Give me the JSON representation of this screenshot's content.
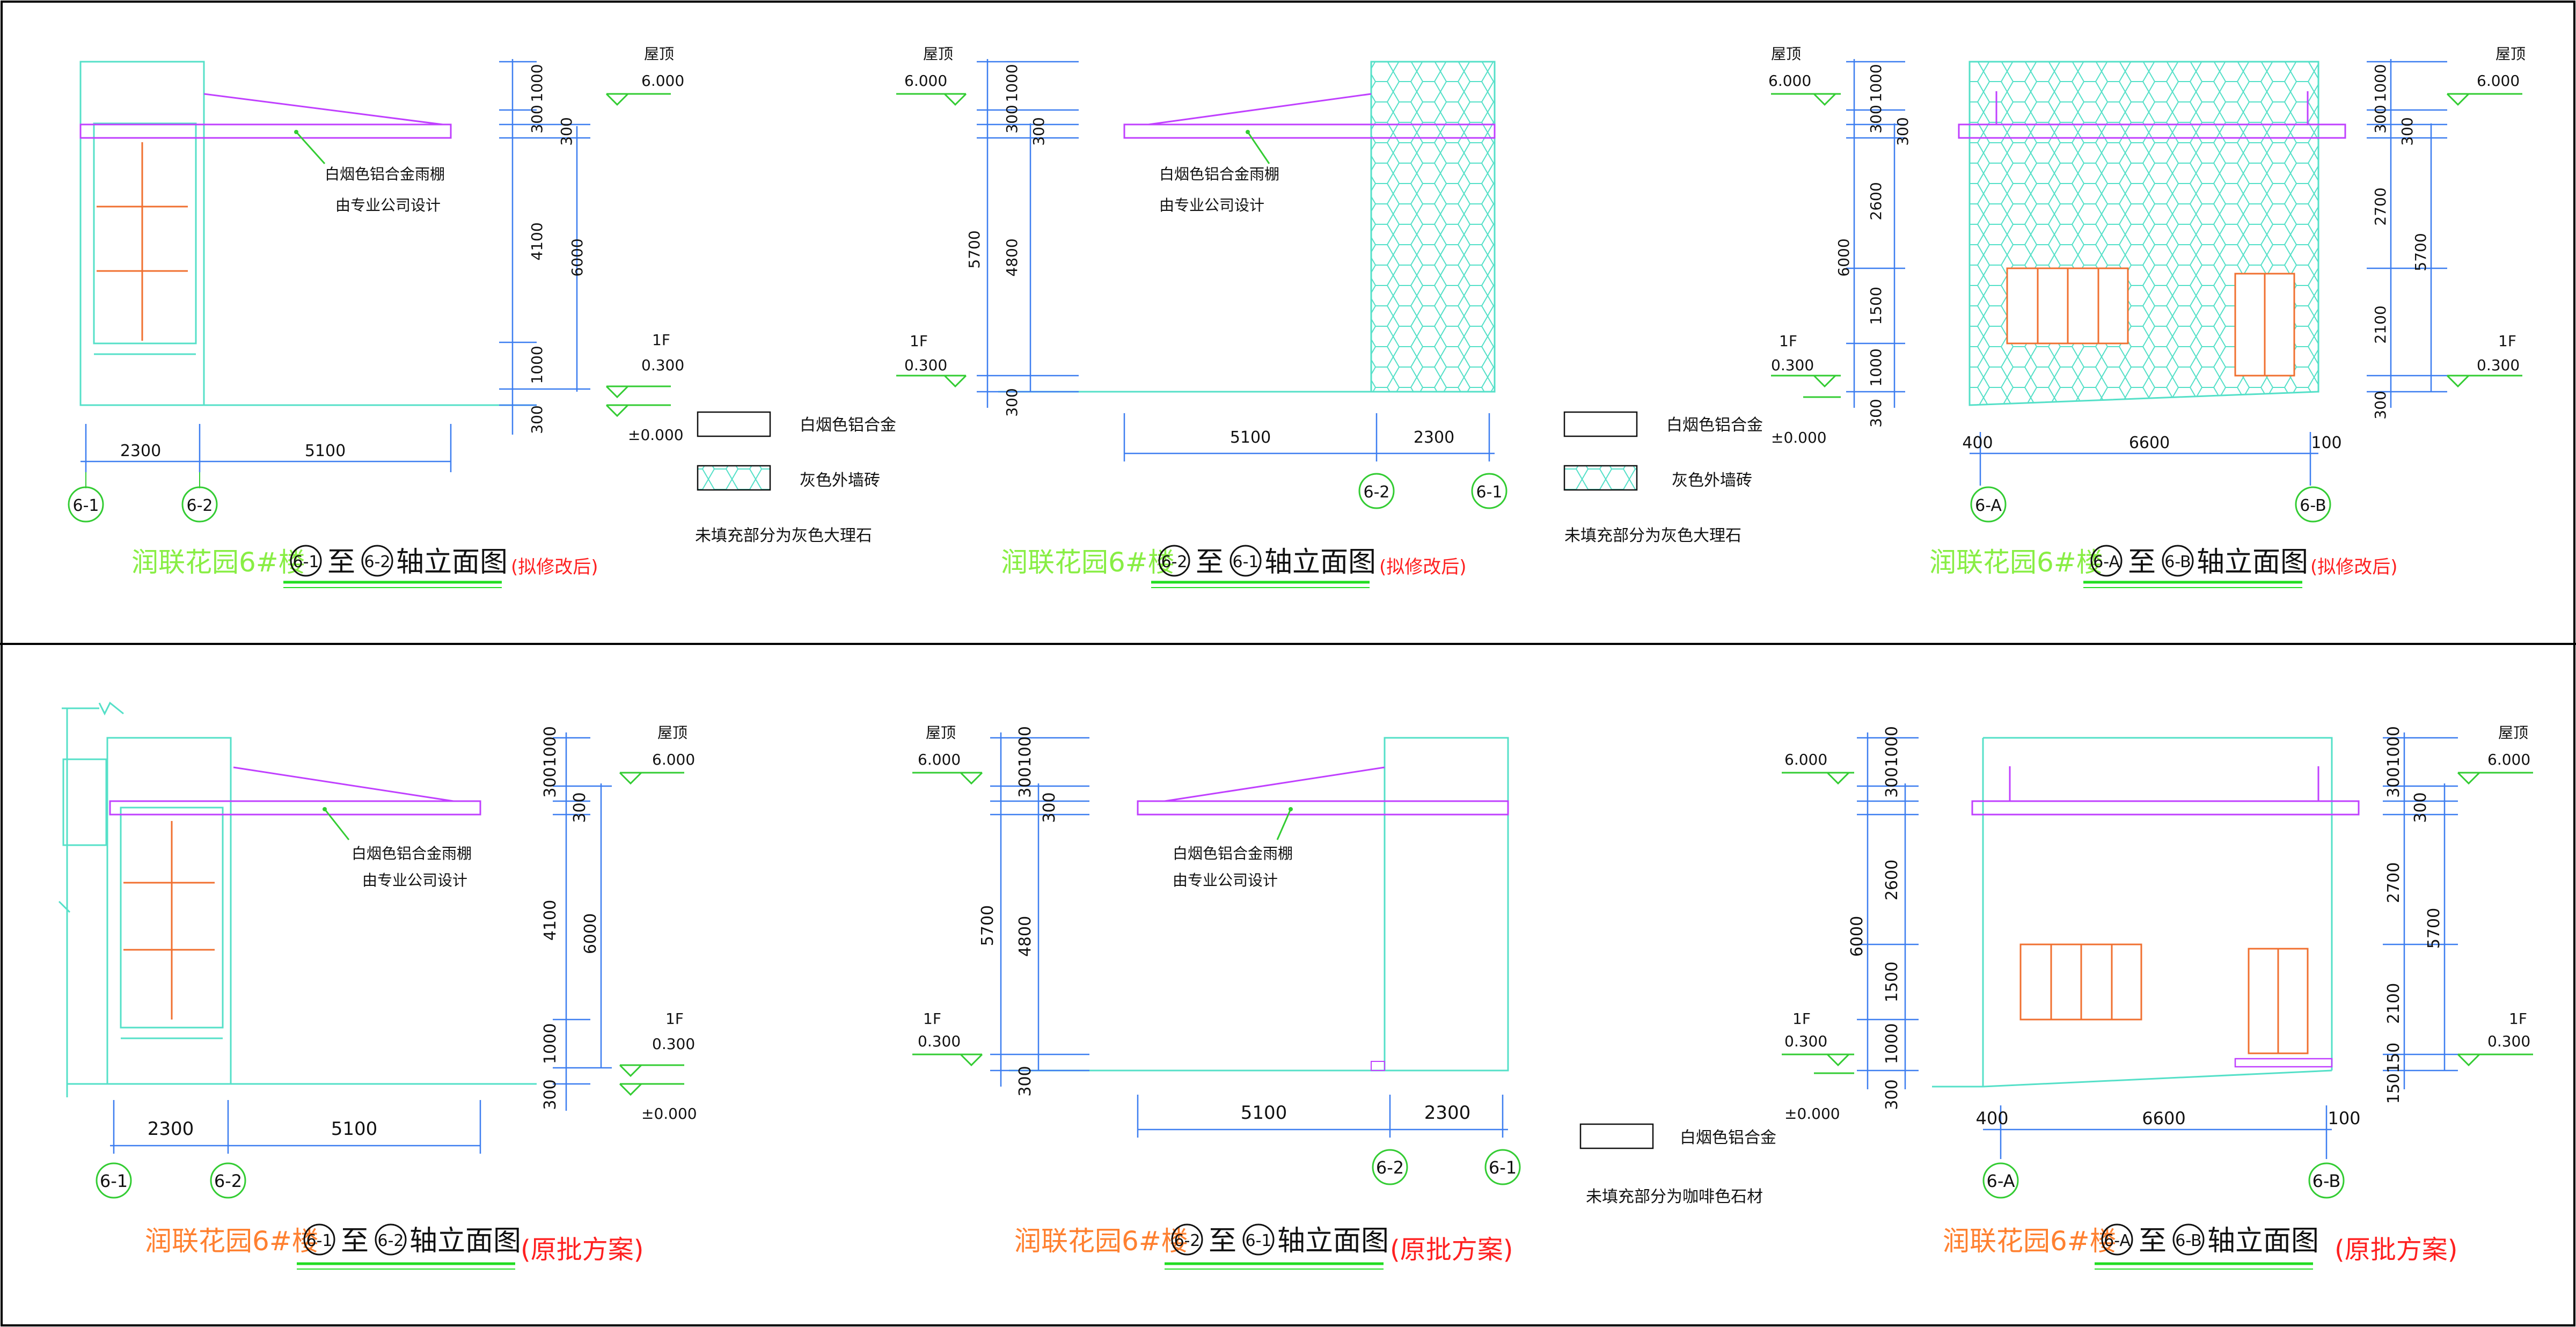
{
  "colors": {
    "background": "#ffffff",
    "frame": "#000000",
    "wall": "#55e0c8",
    "dimension": "#3d7ef0",
    "canopy": "#c040ff",
    "window": "#f07030",
    "level_marker": "#33cc33",
    "title_green": "#88ee44",
    "title_orange": "#ff8030",
    "label_black": "#111111",
    "revision_red": "#ff2020",
    "underline_green": "#22dd22"
  },
  "common": {
    "canopy_note_1": "白烟色铝合金雨棚",
    "canopy_note_2": "由专业公司设计",
    "roof": "屋顶",
    "roof_elev": "6.000",
    "floor": "1F",
    "floor_elev": "0.300",
    "ground_elev": "±0.000",
    "building": "润联花园6#楼",
    "to": "至",
    "suffix": "轴立面图",
    "revised": "(拟修改后)",
    "original": "(原批方案)",
    "legend_alu": "白烟色铝合金",
    "legend_brick": "灰色外墙砖",
    "legend_note_top": "未填充部分为灰色大理石",
    "legend_note_bottom": "未填充部分为咖啡色石材"
  },
  "axes": {
    "a61": "6-1",
    "a62": "6-2",
    "a6A": "6-A",
    "a6B": "6-B"
  },
  "dims": {
    "d300": "300",
    "d1000": "1000",
    "d4100": "4100",
    "d6000": "6000",
    "d5700": "5700",
    "d4800": "4800",
    "d2600": "2600",
    "d1500": "1500",
    "d2700": "2700",
    "d2100": "2100",
    "d2300": "2300",
    "d5100": "5100",
    "d6600": "6600",
    "d400": "400",
    "d100": "100",
    "d3001000": "3001000",
    "d150150": "150150"
  }
}
